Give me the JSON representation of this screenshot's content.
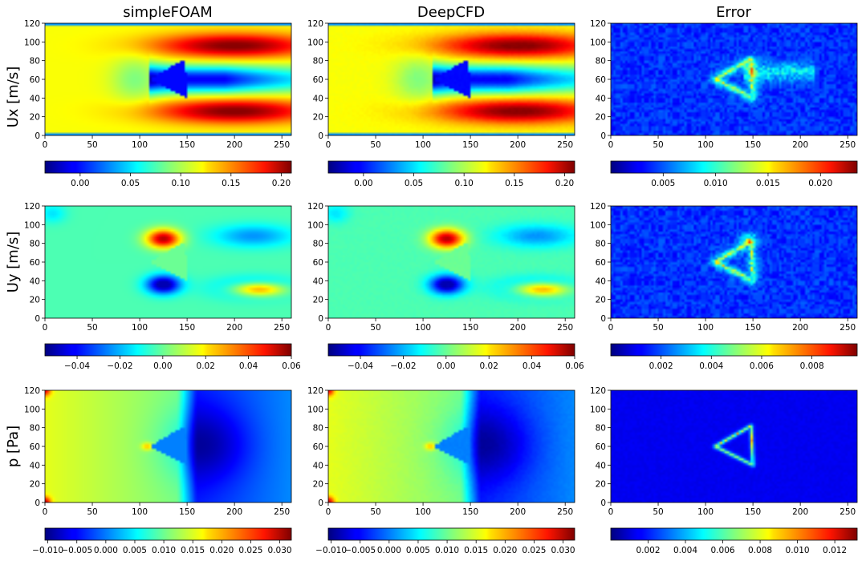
{
  "chart_data": {
    "type": "heatmap",
    "colormap": "jet",
    "columns": [
      "simpleFOAM",
      "DeepCFD",
      "Error"
    ],
    "rows": [
      "Ux [m/s]",
      "Uy [m/s]",
      "p [Pa]"
    ],
    "x_ticks": [
      "0",
      "50",
      "100",
      "150",
      "200",
      "250"
    ],
    "y_ticks": [
      "0",
      "20",
      "40",
      "60",
      "80",
      "100",
      "120"
    ],
    "xlim": [
      0,
      260
    ],
    "ylim": [
      0,
      120
    ],
    "obstacle": {
      "shape": "triangle",
      "vertices": [
        [
          110,
          60
        ],
        [
          148,
          82
        ],
        [
          150,
          40
        ]
      ]
    },
    "colorbars": [
      [
        {
          "range": [
            -0.035,
            0.21
          ],
          "ticks": [
            "0.00",
            "0.05",
            "0.10",
            "0.15",
            "0.20"
          ],
          "tick_values": [
            0,
            0.05,
            0.1,
            0.15,
            0.2
          ]
        },
        {
          "range": [
            -0.035,
            0.21
          ],
          "ticks": [
            "0.00",
            "0.05",
            "0.10",
            "0.15",
            "0.20"
          ],
          "tick_values": [
            0,
            0.05,
            0.1,
            0.15,
            0.2
          ]
        },
        {
          "range": [
            0,
            0.0235
          ],
          "ticks": [
            "0.005",
            "0.010",
            "0.015",
            "0.020"
          ],
          "tick_values": [
            0.005,
            0.01,
            0.015,
            0.02
          ]
        }
      ],
      [
        {
          "range": [
            -0.055,
            0.06
          ],
          "ticks": [
            "−0.04",
            "−0.02",
            "0.00",
            "0.02",
            "0.04",
            "0.06"
          ],
          "tick_values": [
            -0.04,
            -0.02,
            0,
            0.02,
            0.04,
            0.06
          ]
        },
        {
          "range": [
            -0.055,
            0.06
          ],
          "ticks": [
            "−0.04",
            "−0.02",
            "0.00",
            "0.02",
            "0.04",
            "0.06"
          ],
          "tick_values": [
            -0.04,
            -0.02,
            0,
            0.02,
            0.04,
            0.06
          ]
        },
        {
          "range": [
            0,
            0.0098
          ],
          "ticks": [
            "0.002",
            "0.004",
            "0.006",
            "0.008"
          ],
          "tick_values": [
            0.002,
            0.004,
            0.006,
            0.008
          ]
        }
      ],
      [
        {
          "range": [
            -0.0105,
            0.032
          ],
          "ticks": [
            "−0.010",
            "−0.005",
            "0.000",
            "0.005",
            "0.010",
            "0.015",
            "0.020",
            "0.025",
            "0.030"
          ],
          "tick_values": [
            -0.01,
            -0.005,
            0,
            0.005,
            0.01,
            0.015,
            0.02,
            0.025,
            0.03
          ]
        },
        {
          "range": [
            -0.0105,
            0.032
          ],
          "ticks": [
            "−0.010",
            "−0.005",
            "0.000",
            "0.005",
            "0.010",
            "0.015",
            "0.020",
            "0.025",
            "0.030"
          ],
          "tick_values": [
            -0.01,
            -0.005,
            0,
            0.005,
            0.01,
            0.015,
            0.02,
            0.025,
            0.03
          ]
        },
        {
          "range": [
            0,
            0.0132
          ],
          "ticks": [
            "0.002",
            "0.004",
            "0.006",
            "0.008",
            "0.010",
            "0.012"
          ],
          "tick_values": [
            0.002,
            0.004,
            0.006,
            0.008,
            0.01,
            0.012
          ]
        }
      ]
    ]
  }
}
